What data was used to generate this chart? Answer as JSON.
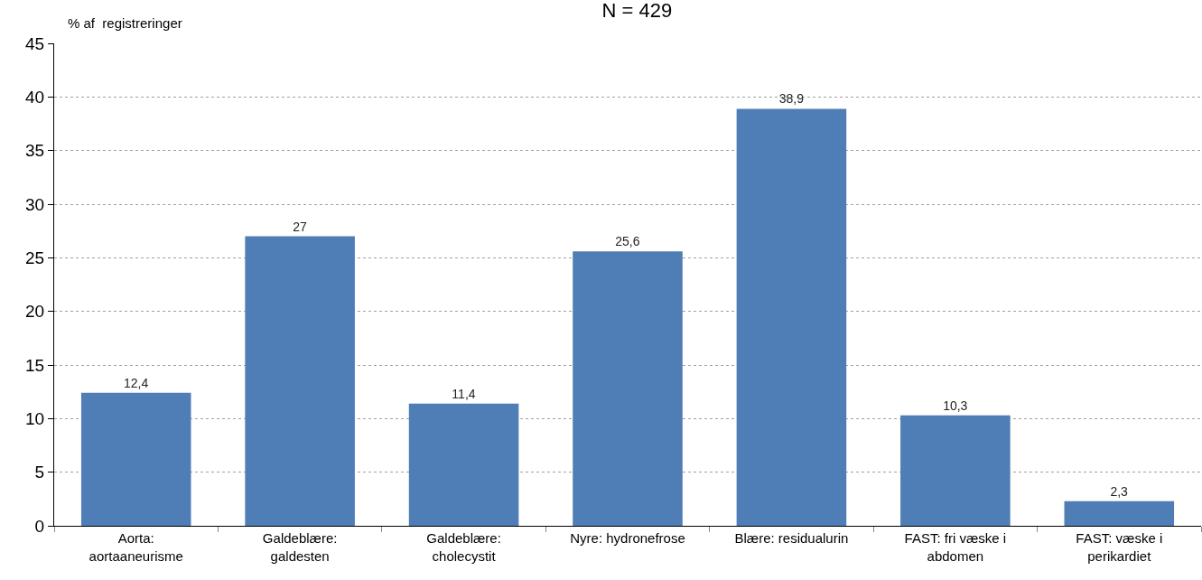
{
  "chart_data": {
    "type": "bar",
    "title": "N = 429",
    "ylabel": "% af  registreringer",
    "categories": [
      "Aorta: aortaaneurisme",
      "Galdeblære: galdesten",
      "Galdeblære: cholecystit",
      "Nyre: hydronefrose",
      "Blære: residualurin",
      "FAST: fri væske i abdomen",
      "FAST: væske i perikardiet"
    ],
    "values": [
      12.4,
      27,
      11.4,
      25.6,
      38.9,
      10.3,
      2.3
    ],
    "value_labels": [
      "12,4",
      "27",
      "11,4",
      "25,6",
      "38,9",
      "10,3",
      "2,3"
    ],
    "color": "#4f7db5",
    "ylim": [
      0,
      45
    ],
    "yticks": [
      0,
      5,
      10,
      15,
      20,
      25,
      30,
      35,
      40,
      45
    ],
    "grid": "y",
    "legend": false
  }
}
